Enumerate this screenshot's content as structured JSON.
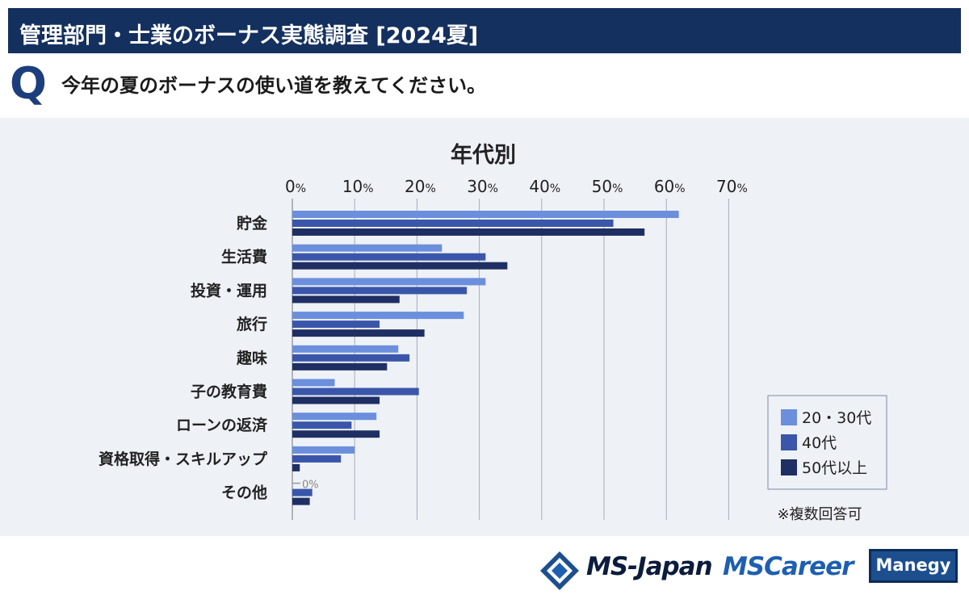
{
  "header": {
    "title": "管理部門・士業のボーナス実態調査 [2024夏]"
  },
  "question": {
    "mark": "Q",
    "text": "今年の夏のボーナスの使い道を教えてください。"
  },
  "chart_data": {
    "type": "bar",
    "orientation": "horizontal",
    "title": "年代別",
    "categories": [
      "貯金",
      "生活費",
      "投資・運用",
      "旅行",
      "趣味",
      "子の教育費",
      "ローンの返済",
      "資格取得・スキルアップ",
      "その他"
    ],
    "series": [
      {
        "name": "20・30代",
        "color": "#6b8fdc",
        "values": [
          62,
          24,
          31,
          27.5,
          17,
          6.8,
          13.5,
          10,
          0
        ]
      },
      {
        "name": "40代",
        "color": "#3a56aa",
        "values": [
          51.5,
          31,
          28,
          14,
          18.8,
          20.3,
          9.5,
          7.8,
          3.2
        ]
      },
      {
        "name": "50代以上",
        "color": "#1f2f63",
        "values": [
          56.5,
          34.5,
          17.2,
          21.2,
          15.2,
          14,
          14,
          1.2,
          2.8
        ]
      }
    ],
    "xlim": [
      0,
      70
    ],
    "ticks": [
      0,
      10,
      20,
      30,
      40,
      50,
      60,
      70
    ],
    "tick_labels": [
      "0",
      "10",
      "20",
      "30",
      "40",
      "50",
      "60",
      "70"
    ],
    "tick_unit": "%",
    "zero_label": {
      "text": "0%",
      "category_index": 8
    },
    "legend_position": "bottom-right",
    "note": "※複数回答可"
  },
  "footer": {
    "logo_msjapan": "MS-Japan",
    "logo_mscareer": "MSCareer",
    "logo_manegy": "Manegy"
  }
}
